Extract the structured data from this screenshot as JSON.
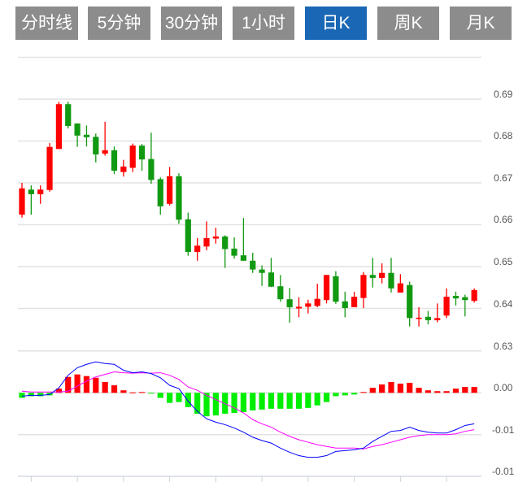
{
  "tabs": [
    {
      "label": "分时线",
      "active": false
    },
    {
      "label": "5分钟",
      "active": false
    },
    {
      "label": "30分钟",
      "active": false
    },
    {
      "label": "1小时",
      "active": false
    },
    {
      "label": "日K",
      "active": true
    },
    {
      "label": "周K",
      "active": false
    },
    {
      "label": "月K",
      "active": false
    }
  ],
  "colors": {
    "up": "#ff0000",
    "down": "#119911",
    "hist_up": "#ff0000",
    "hist_down": "#00ee00",
    "dif": "#0000ff",
    "dea": "#ff00ff",
    "active_tab": "#1a67b5",
    "tab": "#8c8c8c"
  },
  "chart_data": [
    {
      "type": "candlestick",
      "title": "",
      "ylim": [
        0.63,
        0.7
      ],
      "y_ticks": [
        0.69,
        0.68,
        0.67,
        0.66,
        0.65,
        0.64,
        0.63
      ],
      "y_tick_labels": [
        "0.69",
        "0.68",
        "0.67",
        "0.66",
        "0.65",
        "0.64",
        "0.63"
      ],
      "grid": true,
      "ohlc": [
        [
          0.6624,
          0.67,
          0.6617,
          0.6687
        ],
        [
          0.6684,
          0.6694,
          0.6624,
          0.6673
        ],
        [
          0.6673,
          0.6694,
          0.665,
          0.6684
        ],
        [
          0.6683,
          0.6795,
          0.6679,
          0.6786
        ],
        [
          0.6781,
          0.6894,
          0.6781,
          0.6888
        ],
        [
          0.6888,
          0.6894,
          0.683,
          0.6836
        ],
        [
          0.6842,
          0.6842,
          0.6786,
          0.6813
        ],
        [
          0.6815,
          0.6837,
          0.6787,
          0.6809
        ],
        [
          0.681,
          0.6818,
          0.6749,
          0.6768
        ],
        [
          0.677,
          0.6846,
          0.6765,
          0.6778
        ],
        [
          0.6778,
          0.6787,
          0.6721,
          0.6729
        ],
        [
          0.6726,
          0.6755,
          0.6715,
          0.6739
        ],
        [
          0.6736,
          0.6794,
          0.6726,
          0.6789
        ],
        [
          0.6789,
          0.6793,
          0.6729,
          0.6756
        ],
        [
          0.6757,
          0.682,
          0.6698,
          0.6707
        ],
        [
          0.6709,
          0.6713,
          0.6624,
          0.6644
        ],
        [
          0.665,
          0.6738,
          0.6646,
          0.6716
        ],
        [
          0.6716,
          0.6723,
          0.6602,
          0.6612
        ],
        [
          0.6613,
          0.6629,
          0.6526,
          0.6535
        ],
        [
          0.6535,
          0.6568,
          0.6514,
          0.655
        ],
        [
          0.6548,
          0.6608,
          0.6539,
          0.6568
        ],
        [
          0.6567,
          0.6593,
          0.6555,
          0.6572
        ],
        [
          0.6572,
          0.6575,
          0.6497,
          0.6542
        ],
        [
          0.6543,
          0.657,
          0.6519,
          0.6526
        ],
        [
          0.6527,
          0.6616,
          0.6514,
          0.6514
        ],
        [
          0.6514,
          0.6533,
          0.6485,
          0.6493
        ],
        [
          0.6493,
          0.6503,
          0.6454,
          0.6485
        ],
        [
          0.6486,
          0.6521,
          0.6451,
          0.6452
        ],
        [
          0.6453,
          0.648,
          0.6416,
          0.6422
        ],
        [
          0.6422,
          0.6449,
          0.6366,
          0.6403
        ],
        [
          0.64,
          0.6427,
          0.6379,
          0.6404
        ],
        [
          0.6404,
          0.6421,
          0.6388,
          0.6412
        ],
        [
          0.6406,
          0.6459,
          0.6403,
          0.6423
        ],
        [
          0.642,
          0.648,
          0.6412,
          0.648
        ],
        [
          0.6477,
          0.6489,
          0.6411,
          0.6416
        ],
        [
          0.6417,
          0.644,
          0.6379,
          0.6401
        ],
        [
          0.6403,
          0.644,
          0.6403,
          0.6428
        ],
        [
          0.6425,
          0.6487,
          0.6401,
          0.648
        ],
        [
          0.648,
          0.6521,
          0.645,
          0.6473
        ],
        [
          0.6473,
          0.6508,
          0.646,
          0.6485
        ],
        [
          0.6485,
          0.6521,
          0.6438,
          0.6448
        ],
        [
          0.6438,
          0.6482,
          0.6438,
          0.646
        ],
        [
          0.6456,
          0.6464,
          0.6357,
          0.6377
        ],
        [
          0.6375,
          0.6403,
          0.6357,
          0.6378
        ],
        [
          0.638,
          0.6394,
          0.6362,
          0.6372
        ],
        [
          0.6372,
          0.6412,
          0.6367,
          0.6377
        ],
        [
          0.6383,
          0.6448,
          0.6377,
          0.6428
        ],
        [
          0.643,
          0.644,
          0.6407,
          0.6424
        ],
        [
          0.6427,
          0.6433,
          0.6381,
          0.642
        ],
        [
          0.6418,
          0.6448,
          0.6414,
          0.6444
        ]
      ]
    },
    {
      "type": "macd",
      "ylim": [
        -0.01,
        0.005
      ],
      "y_ticks": [
        0.0,
        -0.005,
        -0.01
      ],
      "y_tick_labels": [
        "0.00",
        "-0.01",
        "-0.01"
      ],
      "grid": true,
      "dif": [
        -0.0004,
        -0.0003,
        -0.0003,
        -0.0002,
        0.0006,
        0.0021,
        0.003,
        0.0034,
        0.0037,
        0.0035,
        0.0034,
        0.0027,
        0.0024,
        0.0025,
        0.0023,
        0.0018,
        0.0009,
        0.0005,
        -0.001,
        -0.0022,
        -0.0031,
        -0.0035,
        -0.0038,
        -0.0042,
        -0.0047,
        -0.0053,
        -0.0057,
        -0.006,
        -0.0066,
        -0.0071,
        -0.0075,
        -0.0077,
        -0.0077,
        -0.0075,
        -0.007,
        -0.0069,
        -0.0068,
        -0.0066,
        -0.0058,
        -0.0052,
        -0.0046,
        -0.0045,
        -0.0041,
        -0.0045,
        -0.0047,
        -0.0048,
        -0.0048,
        -0.0044,
        -0.0039,
        -0.0037
      ],
      "histogram": [
        -0.0006,
        -0.0004,
        -0.0004,
        -0.0003,
        0.0005,
        0.0019,
        0.0022,
        0.002,
        0.0018,
        0.0013,
        0.0009,
        0.0003,
        5e-05,
        0.0001,
        -5e-05,
        -0.0006,
        -0.0012,
        -0.0011,
        -0.0017,
        -0.0025,
        -0.0028,
        -0.0027,
        -0.0025,
        -0.0024,
        -0.0023,
        -0.0021,
        -0.002,
        -0.0019,
        -0.0019,
        -0.0019,
        -0.0019,
        -0.0018,
        -0.0015,
        -0.0011,
        -0.0004,
        -0.0003,
        -0.0002,
        0.0001,
        0.0006,
        0.001,
        0.0013,
        0.0011,
        0.0012,
        0.0006,
        0.0003,
        0.0002,
        0.0002,
        0.0005,
        0.0007,
        0.0007
      ]
    }
  ]
}
